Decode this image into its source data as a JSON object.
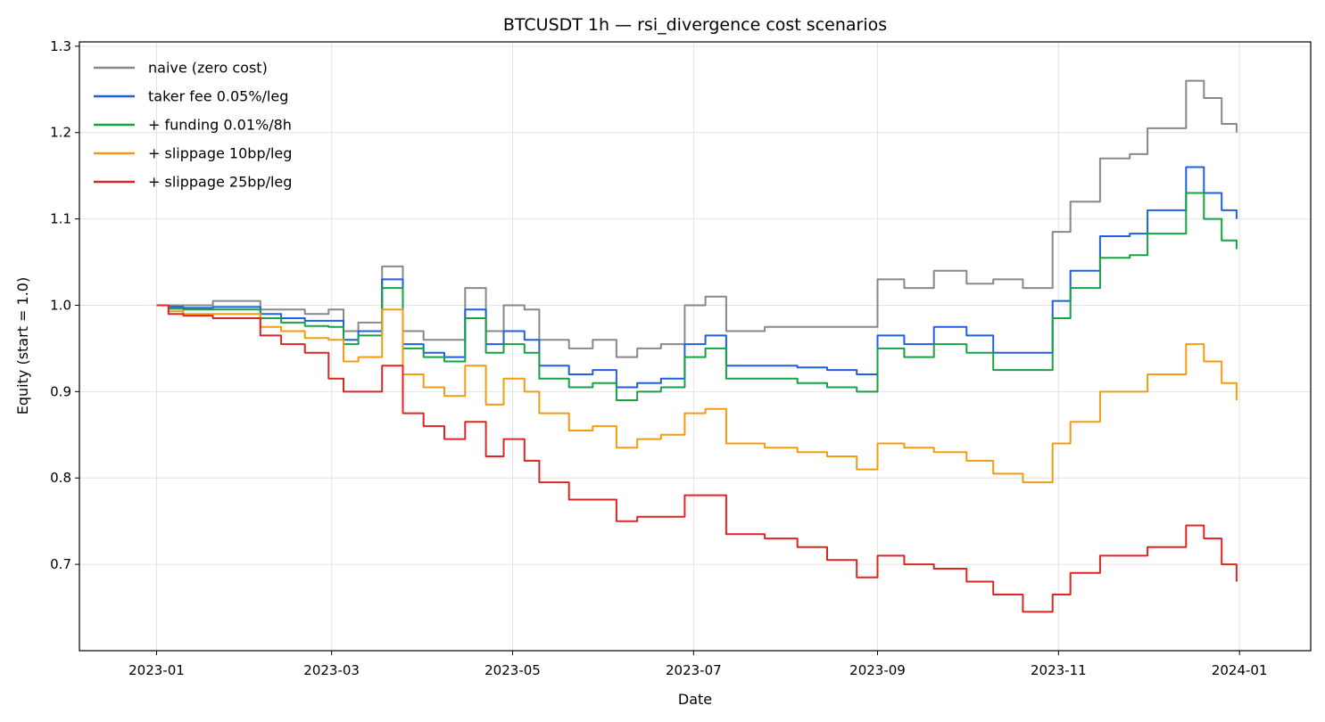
{
  "chart_data": {
    "type": "line",
    "title": "BTCUSDT 1h — rsi_divergence cost scenarios",
    "xlabel": "Date",
    "ylabel": "Equity (start = 1.0)",
    "xlim": [
      "2022-12-06",
      "2024-01-25"
    ],
    "ylim": [
      0.6,
      1.305
    ],
    "x_ticks": [
      "2023-01-01",
      "2023-03-01",
      "2023-05-01",
      "2023-07-01",
      "2023-09-01",
      "2023-11-01",
      "2024-01-01"
    ],
    "x_tick_labels": [
      "2023-01",
      "2023-03",
      "2023-05",
      "2023-07",
      "2023-09",
      "2023-11",
      "2024-01"
    ],
    "y_ticks": [
      0.7,
      0.8,
      0.9,
      1.0,
      1.1,
      1.2,
      1.3
    ],
    "y_tick_labels": [
      "0.7",
      "0.8",
      "0.9",
      "1.0",
      "1.1",
      "1.2",
      "1.3"
    ],
    "grid": true,
    "legend_position": "top-left",
    "x": [
      "2023-01-01",
      "2023-01-05",
      "2023-01-10",
      "2023-01-20",
      "2023-02-01",
      "2023-02-05",
      "2023-02-12",
      "2023-02-20",
      "2023-02-28",
      "2023-03-05",
      "2023-03-10",
      "2023-03-18",
      "2023-03-25",
      "2023-04-01",
      "2023-04-08",
      "2023-04-15",
      "2023-04-22",
      "2023-04-28",
      "2023-05-05",
      "2023-05-10",
      "2023-05-20",
      "2023-05-28",
      "2023-06-05",
      "2023-06-12",
      "2023-06-20",
      "2023-06-28",
      "2023-07-05",
      "2023-07-12",
      "2023-07-25",
      "2023-08-05",
      "2023-08-15",
      "2023-08-25",
      "2023-09-01",
      "2023-09-10",
      "2023-09-20",
      "2023-10-01",
      "2023-10-10",
      "2023-10-20",
      "2023-10-30",
      "2023-11-05",
      "2023-11-15",
      "2023-11-25",
      "2023-12-01",
      "2023-12-08",
      "2023-12-14",
      "2023-12-20",
      "2023-12-26",
      "2023-12-31"
    ],
    "series": [
      {
        "name": "naive (zero cost)",
        "color": "#888888",
        "values": [
          1.0,
          1.0,
          1.0,
          1.005,
          1.005,
          0.995,
          0.995,
          0.99,
          0.995,
          0.97,
          0.98,
          1.045,
          0.97,
          0.96,
          0.96,
          1.02,
          0.97,
          1.0,
          0.995,
          0.96,
          0.95,
          0.96,
          0.94,
          0.95,
          0.955,
          1.0,
          1.01,
          0.97,
          0.975,
          0.975,
          0.975,
          0.975,
          1.03,
          1.02,
          1.04,
          1.025,
          1.03,
          1.02,
          1.085,
          1.12,
          1.17,
          1.175,
          1.205,
          1.205,
          1.26,
          1.24,
          1.21,
          1.2
        ]
      },
      {
        "name": "taker fee 0.05%/leg",
        "color": "#1f5fe0",
        "values": [
          1.0,
          0.998,
          0.997,
          0.998,
          0.998,
          0.99,
          0.985,
          0.982,
          0.982,
          0.96,
          0.97,
          1.03,
          0.955,
          0.945,
          0.94,
          0.995,
          0.955,
          0.97,
          0.96,
          0.93,
          0.92,
          0.925,
          0.905,
          0.91,
          0.915,
          0.955,
          0.965,
          0.93,
          0.93,
          0.928,
          0.925,
          0.92,
          0.965,
          0.955,
          0.975,
          0.965,
          0.945,
          0.945,
          1.005,
          1.04,
          1.08,
          1.083,
          1.11,
          1.11,
          1.16,
          1.13,
          1.11,
          1.1
        ]
      },
      {
        "name": "+ funding 0.01%/8h",
        "color": "#18a145",
        "values": [
          1.0,
          0.996,
          0.995,
          0.995,
          0.995,
          0.985,
          0.98,
          0.976,
          0.975,
          0.955,
          0.965,
          1.02,
          0.95,
          0.94,
          0.935,
          0.985,
          0.945,
          0.955,
          0.945,
          0.915,
          0.905,
          0.91,
          0.89,
          0.9,
          0.905,
          0.94,
          0.95,
          0.915,
          0.915,
          0.91,
          0.905,
          0.9,
          0.95,
          0.94,
          0.955,
          0.945,
          0.925,
          0.925,
          0.985,
          1.02,
          1.055,
          1.058,
          1.083,
          1.083,
          1.13,
          1.1,
          1.075,
          1.065
        ]
      },
      {
        "name": "+ slippage 10bp/leg",
        "color": "#f39c12",
        "values": [
          1.0,
          0.993,
          0.99,
          0.99,
          0.99,
          0.975,
          0.97,
          0.962,
          0.96,
          0.935,
          0.94,
          0.995,
          0.92,
          0.905,
          0.895,
          0.93,
          0.885,
          0.915,
          0.9,
          0.875,
          0.855,
          0.86,
          0.835,
          0.845,
          0.85,
          0.875,
          0.88,
          0.84,
          0.835,
          0.83,
          0.825,
          0.81,
          0.84,
          0.835,
          0.83,
          0.82,
          0.805,
          0.795,
          0.84,
          0.865,
          0.9,
          0.9,
          0.92,
          0.92,
          0.955,
          0.935,
          0.91,
          0.89
        ]
      },
      {
        "name": "+ slippage 25bp/leg",
        "color": "#dc2626",
        "values": [
          1.0,
          0.99,
          0.988,
          0.985,
          0.985,
          0.965,
          0.955,
          0.945,
          0.915,
          0.9,
          0.9,
          0.93,
          0.875,
          0.86,
          0.845,
          0.865,
          0.825,
          0.845,
          0.82,
          0.795,
          0.775,
          0.775,
          0.75,
          0.755,
          0.755,
          0.78,
          0.78,
          0.735,
          0.73,
          0.72,
          0.705,
          0.685,
          0.71,
          0.7,
          0.695,
          0.68,
          0.665,
          0.645,
          0.665,
          0.69,
          0.71,
          0.71,
          0.72,
          0.72,
          0.745,
          0.73,
          0.7,
          0.68
        ]
      }
    ]
  }
}
